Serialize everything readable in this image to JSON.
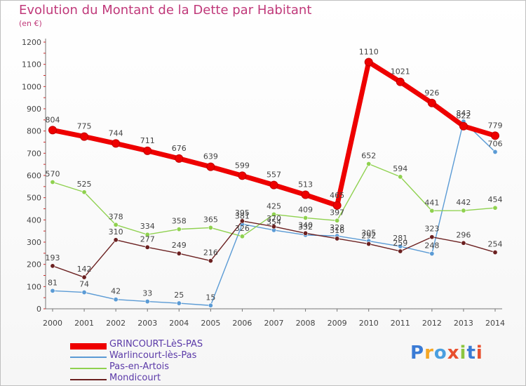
{
  "title": "Evolution du Montant de la Dette par Habitant",
  "unit": "(en €)",
  "logo": "Proxiti",
  "chart_data": {
    "type": "line",
    "x": [
      "2000",
      "2001",
      "2002",
      "2003",
      "2004",
      "2005",
      "2006",
      "2007",
      "2008",
      "2009",
      "2010",
      "2011",
      "2012",
      "2013",
      "2014"
    ],
    "ylim": [
      0,
      1200
    ],
    "yticks": [
      0,
      100,
      200,
      300,
      400,
      500,
      600,
      700,
      800,
      900,
      1000,
      1100,
      1200
    ],
    "grid": false,
    "legend_position": "bottom",
    "series": [
      {
        "name": "GRINCOURT-LèS-PAS",
        "color": "#ee0000",
        "thick": true,
        "values": [
          804,
          775,
          744,
          711,
          676,
          639,
          599,
          557,
          513,
          465,
          1110,
          1021,
          926,
          822,
          779
        ]
      },
      {
        "name": "Warlincourt-lès-Pas",
        "color": "#5b9bd5",
        "thick": false,
        "values": [
          81,
          74,
          42,
          33,
          25,
          15,
          381,
          354,
          332,
          328,
          305,
          281,
          248,
          843,
          706
        ]
      },
      {
        "name": "Pas-en-Artois",
        "color": "#8fd14f",
        "thick": false,
        "values": [
          570,
          525,
          378,
          334,
          358,
          365,
          326,
          425,
          409,
          397,
          652,
          594,
          441,
          442,
          454
        ]
      },
      {
        "name": "Mondicourt",
        "color": "#6b2020",
        "thick": false,
        "values": [
          193,
          142,
          310,
          277,
          249,
          216,
          395,
          370,
          340,
          316,
          292,
          259,
          323,
          296,
          254
        ]
      }
    ]
  }
}
